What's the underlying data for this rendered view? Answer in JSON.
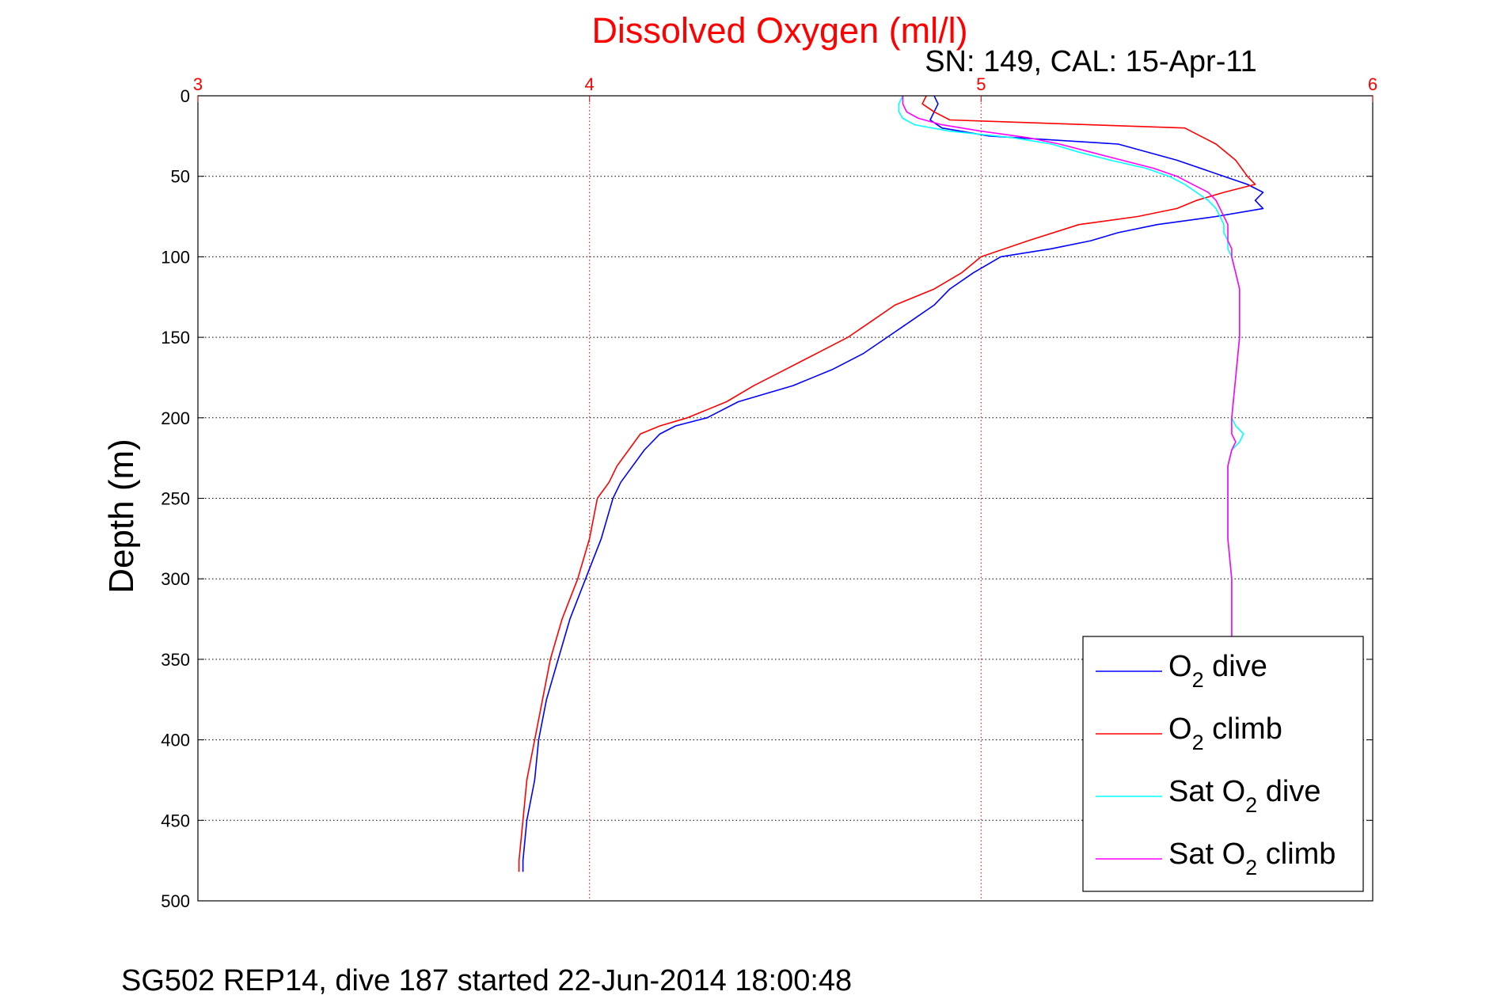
{
  "chart_data": {
    "type": "line",
    "title": "Dissolved Oxygen (ml/l)",
    "subtitle": "SN: 149, CAL: 15-Apr-11",
    "ylabel": "Depth (m)",
    "footer": "SG502 REP14, dive 187 started 22-Jun-2014 18:00:48",
    "xlim": [
      3,
      6
    ],
    "ylim": [
      0,
      500
    ],
    "y_reversed": true,
    "x_axis_position": "top",
    "x_ticks": [
      "3",
      "4",
      "5",
      "6"
    ],
    "y_ticks": [
      "0",
      "50",
      "100",
      "150",
      "200",
      "250",
      "300",
      "350",
      "400",
      "450",
      "500"
    ],
    "grid": true,
    "legend_position": "bottom-right",
    "colors": {
      "title": "#ff0000",
      "x_grid": "#ff0000",
      "y_grid": "#000000",
      "o2_dive": "#0000ff",
      "o2_climb": "#ff0000",
      "sat_dive": "#00ffff",
      "sat_climb": "#ff00ff"
    },
    "series": [
      {
        "key": "o2_dive",
        "legend_main": "O",
        "legend_sub": "2",
        "legend_tail": " dive",
        "depth": [
          0,
          5,
          10,
          15,
          20,
          25,
          30,
          40,
          50,
          55,
          60,
          65,
          70,
          75,
          80,
          85,
          90,
          95,
          100,
          110,
          120,
          130,
          140,
          150,
          160,
          170,
          180,
          190,
          200,
          205,
          210,
          220,
          230,
          240,
          250,
          275,
          300,
          325,
          350,
          375,
          400,
          425,
          450,
          475,
          482
        ],
        "values": [
          4.88,
          4.89,
          4.88,
          4.87,
          4.9,
          5.02,
          5.35,
          5.5,
          5.62,
          5.68,
          5.72,
          5.7,
          5.72,
          5.6,
          5.45,
          5.35,
          5.28,
          5.18,
          5.05,
          4.98,
          4.92,
          4.88,
          4.82,
          4.76,
          4.7,
          4.62,
          4.52,
          4.38,
          4.3,
          4.22,
          4.18,
          4.14,
          4.11,
          4.08,
          4.06,
          4.03,
          3.99,
          3.95,
          3.92,
          3.89,
          3.87,
          3.86,
          3.84,
          3.83,
          3.83
        ]
      },
      {
        "key": "o2_climb",
        "legend_main": "O",
        "legend_sub": "2",
        "legend_tail": " climb",
        "depth": [
          0,
          5,
          10,
          15,
          20,
          25,
          30,
          40,
          50,
          55,
          60,
          65,
          70,
          75,
          80,
          90,
          100,
          110,
          120,
          130,
          140,
          150,
          160,
          170,
          180,
          190,
          200,
          205,
          210,
          220,
          230,
          240,
          250,
          275,
          300,
          325,
          350,
          375,
          400,
          425,
          450,
          475,
          482
        ],
        "values": [
          4.86,
          4.85,
          4.88,
          4.92,
          5.52,
          5.56,
          5.6,
          5.65,
          5.68,
          5.7,
          5.62,
          5.55,
          5.5,
          5.4,
          5.25,
          5.12,
          5.0,
          4.95,
          4.88,
          4.78,
          4.72,
          4.66,
          4.58,
          4.5,
          4.42,
          4.35,
          4.25,
          4.18,
          4.13,
          4.1,
          4.07,
          4.05,
          4.02,
          4.0,
          3.97,
          3.93,
          3.9,
          3.88,
          3.86,
          3.84,
          3.83,
          3.82,
          3.82
        ]
      },
      {
        "key": "sat_dive",
        "legend_main": "Sat O",
        "legend_sub": "2",
        "legend_tail": " dive",
        "depth": [
          0,
          5,
          10,
          14,
          18,
          22,
          26,
          30,
          35,
          40,
          45,
          50,
          55,
          60,
          65,
          70,
          75,
          80,
          85,
          90,
          95,
          100,
          110,
          120,
          130,
          140,
          150,
          175,
          200,
          205,
          210,
          215,
          220,
          230,
          240,
          250,
          275,
          300,
          325,
          337
        ],
        "values": [
          4.8,
          4.79,
          4.79,
          4.8,
          4.83,
          4.92,
          5.08,
          5.18,
          5.25,
          5.33,
          5.42,
          5.48,
          5.52,
          5.55,
          5.58,
          5.6,
          5.61,
          5.62,
          5.62,
          5.63,
          5.63,
          5.64,
          5.65,
          5.66,
          5.66,
          5.66,
          5.66,
          5.65,
          5.64,
          5.65,
          5.67,
          5.66,
          5.64,
          5.63,
          5.63,
          5.63,
          5.63,
          5.64,
          5.64,
          5.64
        ]
      },
      {
        "key": "sat_climb",
        "legend_main": "Sat O",
        "legend_sub": "2",
        "legend_tail": " climb",
        "depth": [
          0,
          5,
          10,
          14,
          18,
          22,
          26,
          30,
          35,
          40,
          45,
          50,
          55,
          60,
          65,
          70,
          75,
          80,
          85,
          90,
          95,
          100,
          110,
          120,
          130,
          140,
          150,
          175,
          200,
          205,
          210,
          215,
          220,
          230,
          240,
          250,
          275,
          300,
          325,
          337
        ],
        "values": [
          4.8,
          4.8,
          4.81,
          4.84,
          4.9,
          5.0,
          5.12,
          5.2,
          5.28,
          5.36,
          5.44,
          5.5,
          5.54,
          5.58,
          5.6,
          5.61,
          5.62,
          5.63,
          5.63,
          5.63,
          5.64,
          5.64,
          5.65,
          5.66,
          5.66,
          5.66,
          5.66,
          5.65,
          5.64,
          5.64,
          5.64,
          5.65,
          5.64,
          5.63,
          5.63,
          5.63,
          5.63,
          5.64,
          5.64,
          5.64
        ]
      }
    ]
  }
}
